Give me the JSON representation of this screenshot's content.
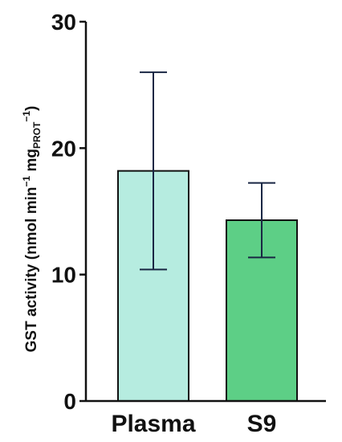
{
  "chart_data": {
    "type": "bar",
    "categories": [
      "Plasma",
      "S9"
    ],
    "values": [
      18.2,
      14.3
    ],
    "errors": [
      7.8,
      2.95
    ],
    "colors": [
      "#b6ece0",
      "#5dcf86"
    ],
    "error_color": "#1a2744",
    "ylim": [
      0,
      30
    ],
    "yticks": [
      "0",
      "10",
      "20",
      "30"
    ],
    "ylabel": {
      "main": "GST activity (nmol min",
      "sup1": "−1",
      "mid": " mg",
      "sub": "PROT",
      "sup2": "−1",
      "end": ")"
    },
    "xlabel": "",
    "title": "",
    "grid": false,
    "legend": "none"
  }
}
